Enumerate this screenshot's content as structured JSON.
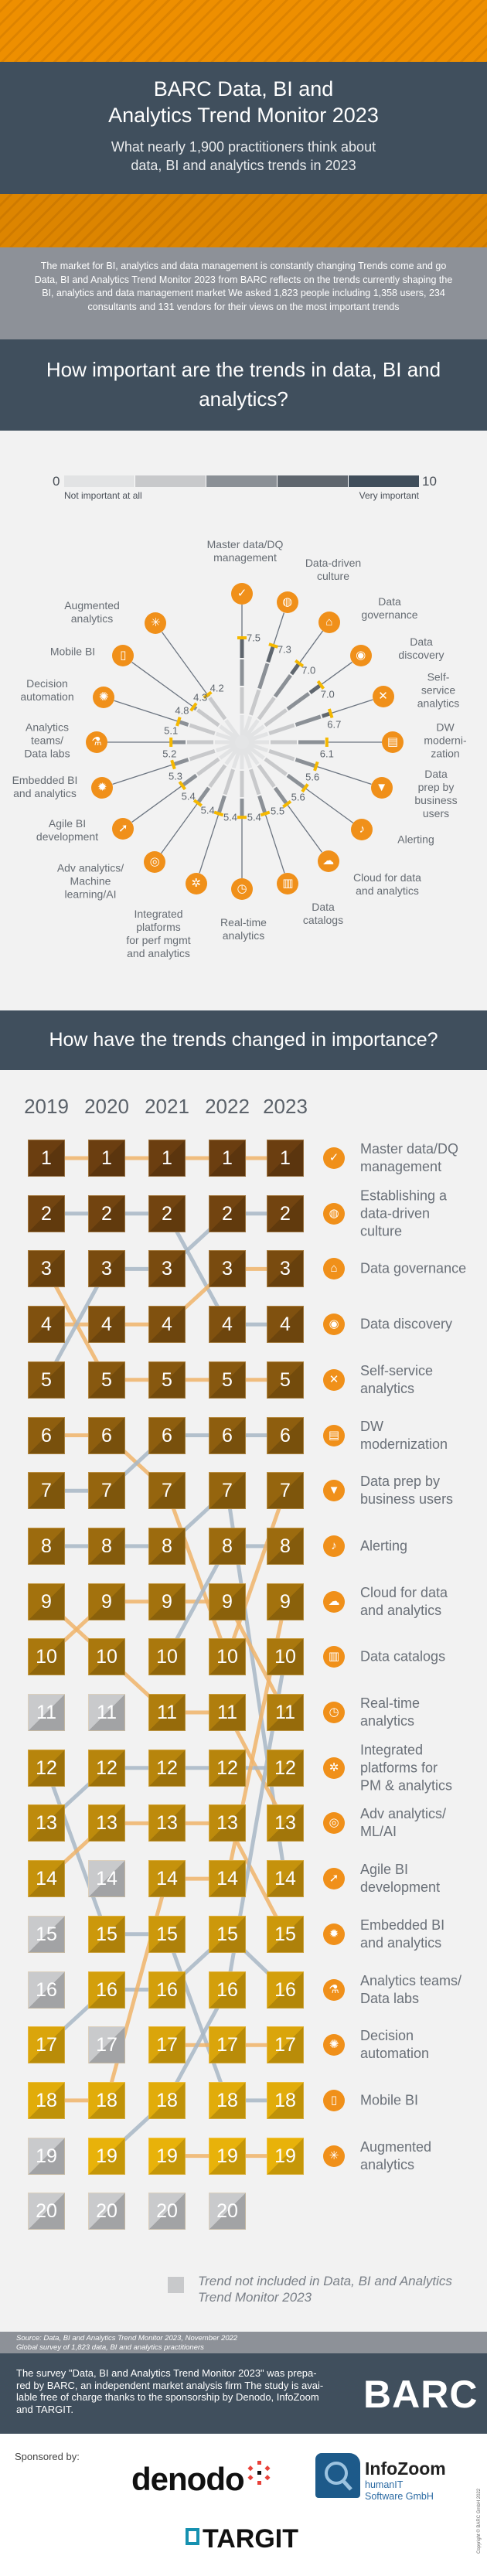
{
  "header": {
    "title": "BARC Data, BI and\nAnalytics Trend Monitor 2023",
    "subtitle": "What nearly 1,900 practitioners think about\ndata, BI and analytics trends in 2023",
    "intro": "The market for BI, analytics and data management is constantly changing Trends come and go Data, BI and Analytics Trend Monitor 2023 from BARC reflects on the trends currently shaping the BI, analytics and data management market We asked 1,823 people including 1,358 users, 234 consultants and 131 vendors for their views on the most important trends"
  },
  "section1": {
    "heading": "How important are the trends in data, BI and analytics?",
    "legend": {
      "min": "0",
      "max": "10",
      "min_label": "Not important at all",
      "max_label": "Very important",
      "colors": [
        "#e2e3e4",
        "#c8c9cb",
        "#8b9096",
        "#5f666e",
        "#404e5b"
      ]
    }
  },
  "section2": {
    "heading": "How have the trends changed in importance?",
    "footnote": "Trend not included in Data, BI and Analytics\nTrend Monitor 2023"
  },
  "colors": {
    "orange": "#f0901a",
    "tick": "#f5b800",
    "dark": "#404f5d",
    "link_orange": "#f0b46a",
    "link_grey": "#a9b8c6",
    "rank_top": "#6b3e10",
    "rank_bottom": "#e8b20a",
    "excluded": "#c8c9cb"
  },
  "chart_data": [
    {
      "type": "radial-bar",
      "scale": [
        0,
        10
      ],
      "categories": [
        "Master data/DQ\nmanagement",
        "Data-driven\nculture",
        "Data\ngovernance",
        "Data discovery",
        "Self-service\nanalytics",
        "DW\nmoderni-\nzation",
        "Data\nprep by\nbusiness users",
        "Alerting",
        "Cloud for data\nand analytics",
        "Data\ncatalogs",
        "Real-time\nanalytics",
        "Integrated\nplatforms\nfor perf mgmt\nand analytics",
        "Adv analytics/\nMachine\nlearning/AI",
        "Agile BI\ndevelopment",
        "Embedded BI\nand analytics",
        "Analytics\nteams/\nData labs",
        "Decision\nautomation",
        "Mobile BI",
        "Augmented\nanalytics"
      ],
      "values": [
        7.5,
        7.3,
        7.0,
        7.0,
        6.7,
        6.1,
        5.6,
        5.6,
        5.5,
        5.4,
        5.4,
        5.4,
        5.4,
        5.3,
        5.2,
        5.1,
        4.8,
        4.3,
        4.2
      ],
      "value_labels": [
        "7.5",
        "7.3",
        "7.0",
        "7.0",
        "6.7",
        "6.1",
        "5.6",
        "5.6",
        "5.5",
        "5.4",
        "5.4",
        "5.4",
        "5.4",
        "5.3",
        "5.2",
        "5.1",
        "4.8",
        "4.3",
        "4.2"
      ],
      "icons": [
        "database-check-icon",
        "globe-people-icon",
        "bank-building-icon",
        "eye-magnifier-icon",
        "head-tools-icon",
        "warehouse-icon",
        "funnel-docs-icon",
        "alert-bell-icon",
        "cloud-gear-icon",
        "catalog-book-icon",
        "clock-magnifier-icon",
        "network-nodes-icon",
        "eye-wrench-icon",
        "running-person-icon",
        "gear-chart-icon",
        "lab-flask-icon",
        "head-gear-bulb-icon",
        "mobile-chart-icon",
        "head-brain-icon"
      ]
    },
    {
      "type": "bump",
      "years": [
        "2019",
        "2020",
        "2021",
        "2022",
        "2023"
      ],
      "ranks": [
        1,
        2,
        3,
        4,
        5,
        6,
        7,
        8,
        9,
        10,
        11,
        12,
        13,
        14,
        15,
        16,
        17,
        18,
        19,
        20
      ],
      "max_rank_per_year": [
        20,
        20,
        20,
        20,
        19
      ],
      "not_included": {
        "2019": [
          11,
          15,
          16,
          19,
          20
        ],
        "2020": [
          11,
          14,
          17,
          20
        ],
        "2021": [
          20
        ],
        "2022": [
          20
        ],
        "2023": []
      },
      "labels_2023": [
        "Master data/DQ\nmanagement",
        "Establishing a\ndata-driven\nculture",
        "Data governance",
        "Data discovery",
        "Self-service\nanalytics",
        "DW\nmodernization",
        "Data prep by\nbusiness users",
        "Alerting",
        "Cloud for data\nand analytics",
        "Data catalogs",
        "Real-time\nanalytics",
        "Integrated\nplatforms for\nPM & analytics",
        "Adv analytics/\nML/AI",
        "Agile BI\ndevelopment",
        "Embedded BI\nand analytics",
        "Analytics teams/\nData labs",
        "Decision\nautomation",
        "Mobile BI",
        "Augmented\nanalytics"
      ],
      "links": [
        [
          [
            1,
            1,
            "orange"
          ],
          [
            2,
            2,
            "grey"
          ],
          [
            3,
            5,
            "orange"
          ],
          [
            4,
            4,
            "orange"
          ],
          [
            5,
            3,
            "grey"
          ],
          [
            6,
            6,
            "orange"
          ],
          [
            7,
            7,
            "grey"
          ],
          [
            8,
            8,
            "grey"
          ],
          [
            9,
            10,
            "orange"
          ],
          [
            10,
            9,
            "orange"
          ],
          [
            12,
            15,
            "grey"
          ],
          [
            13,
            12,
            "grey"
          ],
          [
            14,
            13,
            "orange"
          ],
          [
            17,
            16,
            "grey"
          ],
          [
            18,
            18,
            "orange"
          ]
        ],
        [
          [
            1,
            1,
            "orange"
          ],
          [
            2,
            2,
            "grey"
          ],
          [
            3,
            3,
            "grey"
          ],
          [
            4,
            4,
            "orange"
          ],
          [
            5,
            5,
            "orange"
          ],
          [
            6,
            7,
            "orange"
          ],
          [
            7,
            6,
            "grey"
          ],
          [
            8,
            8,
            "grey"
          ],
          [
            9,
            9,
            "orange"
          ],
          [
            10,
            11,
            "orange"
          ],
          [
            12,
            12,
            "grey"
          ],
          [
            13,
            13,
            "orange"
          ],
          [
            15,
            15,
            "grey"
          ],
          [
            16,
            16,
            "grey"
          ],
          [
            18,
            14,
            "orange"
          ],
          [
            19,
            18,
            "grey"
          ]
        ],
        [
          [
            1,
            1,
            "orange"
          ],
          [
            2,
            4,
            "grey"
          ],
          [
            3,
            2,
            "grey"
          ],
          [
            4,
            3,
            "orange"
          ],
          [
            5,
            5,
            "orange"
          ],
          [
            6,
            6,
            "grey"
          ],
          [
            7,
            10,
            "orange"
          ],
          [
            8,
            7,
            "grey"
          ],
          [
            9,
            9,
            "orange"
          ],
          [
            10,
            8,
            "grey"
          ],
          [
            11,
            11,
            "orange"
          ],
          [
            12,
            12,
            "grey"
          ],
          [
            13,
            13,
            "orange"
          ],
          [
            14,
            14,
            "orange"
          ],
          [
            15,
            18,
            "grey"
          ],
          [
            16,
            15,
            "grey"
          ],
          [
            17,
            17,
            "orange"
          ],
          [
            18,
            16,
            "grey"
          ],
          [
            19,
            19,
            "orange"
          ]
        ],
        [
          [
            1,
            1,
            "orange"
          ],
          [
            2,
            2,
            "grey"
          ],
          [
            3,
            3,
            "orange"
          ],
          [
            4,
            4,
            "grey"
          ],
          [
            5,
            5,
            "orange"
          ],
          [
            6,
            6,
            "grey"
          ],
          [
            7,
            14,
            "grey"
          ],
          [
            8,
            8,
            "grey"
          ],
          [
            9,
            11,
            "orange"
          ],
          [
            10,
            7,
            "orange"
          ],
          [
            11,
            13,
            "orange"
          ],
          [
            12,
            12,
            "grey"
          ],
          [
            13,
            15,
            "orange"
          ],
          [
            14,
            9,
            "orange"
          ],
          [
            15,
            16,
            "grey"
          ],
          [
            16,
            10,
            "grey"
          ],
          [
            17,
            17,
            "orange"
          ],
          [
            18,
            18,
            "grey"
          ],
          [
            19,
            19,
            "orange"
          ]
        ]
      ]
    }
  ],
  "footer": {
    "source": "Source: Data, BI and Analytics Trend Monitor 2023, November 2022\nGlobal survey of 1,823 data, BI and analytics practitioners",
    "about": "The survey \"Data, BI and Analytics Trend Monitor 2023\" was prepa-red by BARC, an independent market analysis firm The study is avai-lable free of charge thanks to the sponsorship by Denodo, InfoZoom and TARGIT.",
    "barc_logo": "BARC",
    "sponsored_by": "Sponsored by:",
    "sponsors": {
      "denodo": "denodo",
      "infozoom": "InfoZoom",
      "infozoom_sub": "humanIT\nSoftware GmbH",
      "targit": "TARGIT"
    },
    "copyright": "Copyright © BARC GmbH 2022"
  }
}
